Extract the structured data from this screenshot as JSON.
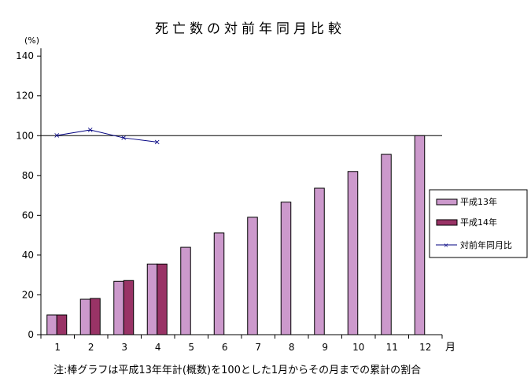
{
  "chart_data": {
    "type": "bar",
    "title": "死亡数の対前年同月比較",
    "ylabel": "(%)",
    "xlabel": "月",
    "note": "注:棒グラフは平成13年年計(概数)を100とした1月からその月までの累計の割合",
    "categories": [
      "1",
      "2",
      "3",
      "4",
      "5",
      "6",
      "7",
      "8",
      "9",
      "10",
      "11",
      "12"
    ],
    "ylim": [
      0,
      140
    ],
    "yticks": [
      "0",
      "20",
      "40",
      "60",
      "80",
      "100",
      "120",
      "140"
    ],
    "reference_line": 100,
    "grid": false,
    "legend_position": "right",
    "series": [
      {
        "name": "平成13年",
        "type": "bar",
        "color": "#cc99cc",
        "values": [
          9.9,
          17.8,
          26.8,
          35.5,
          43.9,
          51.1,
          59.0,
          66.6,
          73.6,
          82.0,
          90.6,
          100
        ]
      },
      {
        "name": "平成14年",
        "type": "bar",
        "color": "#993366",
        "values": [
          9.9,
          18.2,
          27.2,
          35.5,
          null,
          null,
          null,
          null,
          null,
          null,
          null,
          null
        ]
      },
      {
        "name": "対前年同月比",
        "type": "line",
        "color": "#000080",
        "values": [
          100.1,
          102.9,
          98.9,
          96.8,
          null,
          null,
          null,
          null,
          null,
          null,
          null,
          null
        ]
      }
    ]
  }
}
